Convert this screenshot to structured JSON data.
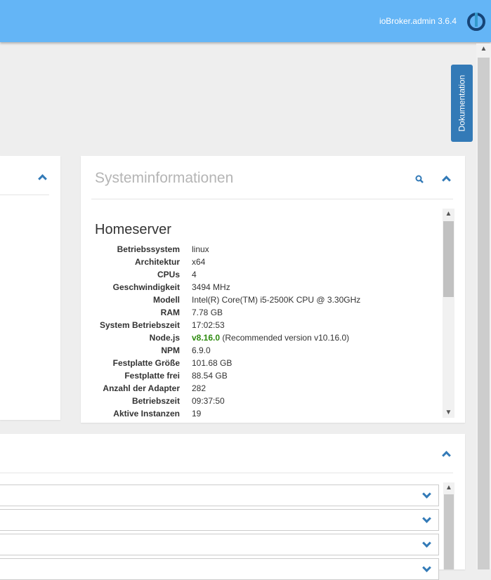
{
  "header": {
    "version": "ioBroker.admin 3.6.4",
    "logo": "iobroker-logo"
  },
  "doc_button": "Dokumentation",
  "sysinfo": {
    "title": "Systeminformationen",
    "host": "Homeserver",
    "rows": [
      {
        "label": "Betriebssystem",
        "value": "linux"
      },
      {
        "label": "Architektur",
        "value": "x64"
      },
      {
        "label": "CPUs",
        "value": "4"
      },
      {
        "label": "Geschwindigkeit",
        "value": "3494 MHz"
      },
      {
        "label": "Modell",
        "value": "Intel(R) Core(TM) i5-2500K CPU @ 3.30GHz"
      },
      {
        "label": "RAM",
        "value": "7.78 GB"
      },
      {
        "label": "System Betriebszeit",
        "value": "17:02:53"
      },
      {
        "label": "Node.js",
        "value": "v8.16.0",
        "note": " (Recommended version v10.16.0)"
      },
      {
        "label": "NPM",
        "value": "6.9.0"
      },
      {
        "label": "Festplatte Größe",
        "value": "101.68 GB"
      },
      {
        "label": "Festplatte frei",
        "value": "88.54 GB"
      },
      {
        "label": "Anzahl der Adapter",
        "value": "282"
      },
      {
        "label": "Betriebszeit",
        "value": "09:37:50"
      },
      {
        "label": "Aktive Instanzen",
        "value": "19"
      }
    ]
  },
  "colors": {
    "header": "#64b5f6",
    "accent": "#337ab7",
    "node_version": "#2e8b0f"
  }
}
